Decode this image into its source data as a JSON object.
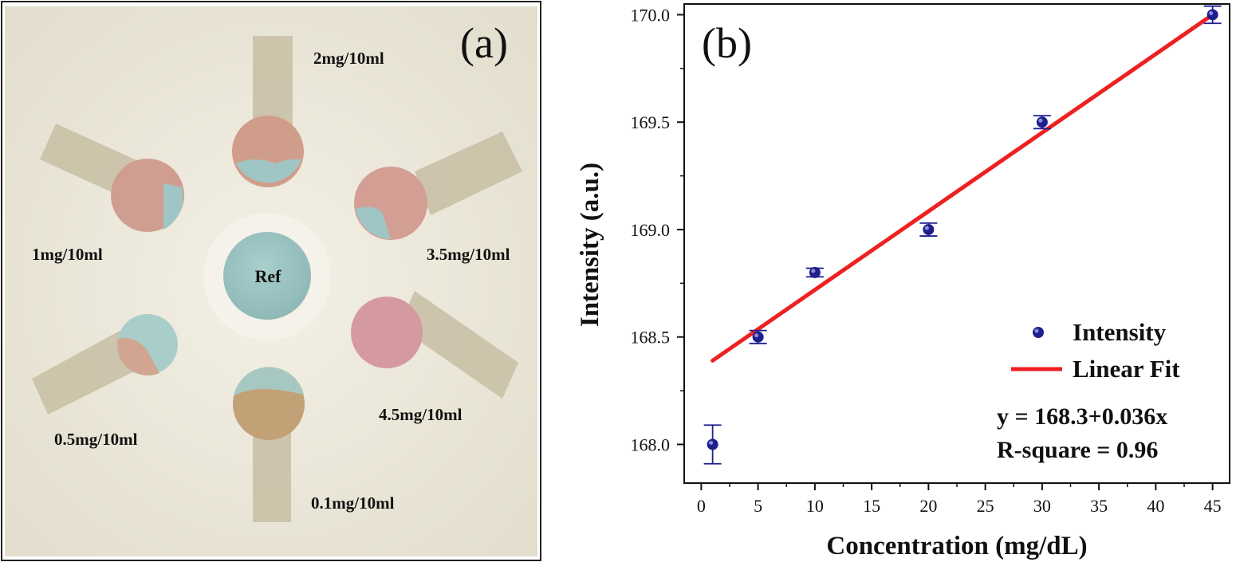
{
  "panel_a": {
    "label": "(a)",
    "ref_label": "Ref",
    "samples": [
      {
        "label": "2mg/10ml"
      },
      {
        "label": "3.5mg/10ml"
      },
      {
        "label": "4.5mg/10ml"
      },
      {
        "label": "0.1mg/10ml"
      },
      {
        "label": "0.5mg/10ml"
      },
      {
        "label": "1mg/10ml"
      }
    ],
    "colors": {
      "paper": "#ece8db",
      "strip": "#c9c0a6",
      "ref_blue": "#9fc6c4",
      "pink": "#d59f97",
      "tan": "#c2a277"
    }
  },
  "chart_data": {
    "type": "scatter",
    "panel_label": "(b)",
    "xlabel": "Concentration (mg/dL)",
    "ylabel": "Intensity (a.u.)",
    "xlim": [
      -1.5,
      46.5
    ],
    "ylim": [
      167.82,
      170.05
    ],
    "x_ticks": [
      0,
      5,
      10,
      15,
      20,
      25,
      30,
      35,
      40,
      45
    ],
    "y_ticks": [
      168.0,
      168.5,
      169.0,
      169.5,
      170.0
    ],
    "y_tick_labels": [
      "168.0",
      "168.5",
      "169.0",
      "169.5",
      "170.0"
    ],
    "series": [
      {
        "name": "Intensity",
        "kind": "scatter",
        "color": "#1f1f8f",
        "x": [
          1,
          5,
          10,
          20,
          30,
          45
        ],
        "y": [
          168.0,
          168.5,
          168.8,
          169.0,
          169.5,
          170.0
        ],
        "err": [
          0.09,
          0.03,
          0.02,
          0.03,
          0.03,
          0.04
        ]
      },
      {
        "name": "Linear Fit",
        "kind": "line",
        "color": "#ee2020",
        "x": [
          1,
          45
        ],
        "y": [
          168.39,
          170.0
        ]
      }
    ],
    "annotations": [
      "y = 168.3+0.036x",
      "R-square = 0.96"
    ],
    "legend_position": "bottom-right",
    "grid": false
  }
}
